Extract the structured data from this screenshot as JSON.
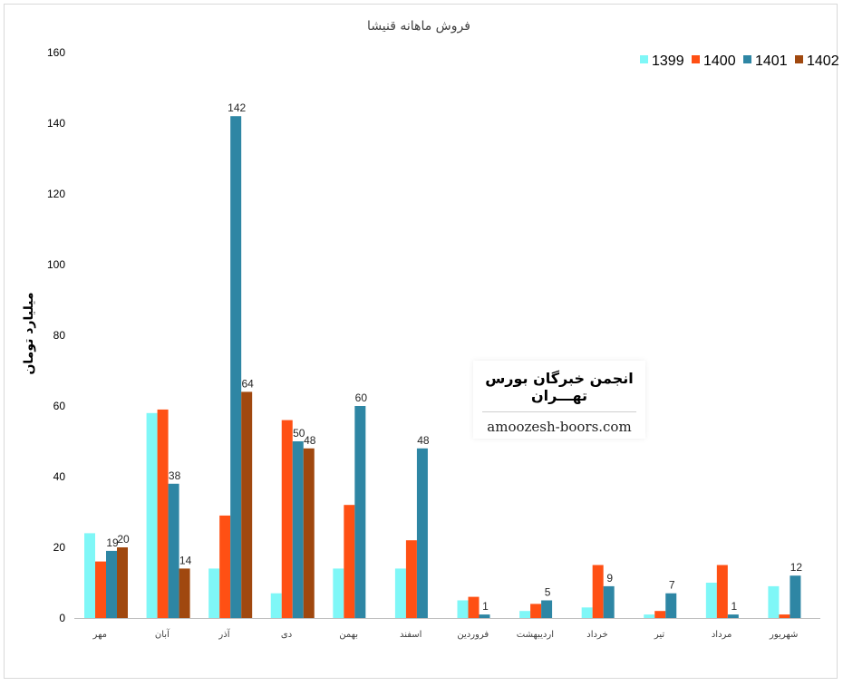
{
  "chart_data": {
    "type": "bar",
    "title": "فروش ماهانه قنیشا",
    "ylabel": "میلیارد تومان",
    "xlabel": "",
    "ylim": [
      0,
      160
    ],
    "yticks": [
      0,
      20,
      40,
      60,
      80,
      100,
      120,
      140,
      160
    ],
    "grid": false,
    "legend_position": "top-right",
    "categories": [
      "مهر",
      "آبان",
      "آذر",
      "دی",
      "بهمن",
      "اسفند",
      "فروردین",
      "اردیبهشت",
      "خرداد",
      "تیر",
      "مرداد",
      "شهریور"
    ],
    "series": [
      {
        "name": "1399",
        "color": "#7ff7f7",
        "values": [
          24,
          58,
          14,
          7,
          14,
          14,
          5,
          2,
          3,
          1,
          10,
          9
        ]
      },
      {
        "name": "1400",
        "color": "#ff5014",
        "values": [
          16,
          59,
          29,
          56,
          32,
          22,
          6,
          4,
          15,
          2,
          15,
          1
        ]
      },
      {
        "name": "1401",
        "color": "#2e86a4",
        "values": [
          19,
          38,
          142,
          50,
          60,
          48,
          1,
          5,
          9,
          7,
          1,
          12
        ]
      },
      {
        "name": "1402",
        "color": "#a0480f",
        "values": [
          20,
          14,
          64,
          48,
          null,
          null,
          null,
          null,
          null,
          null,
          null,
          null
        ]
      }
    ],
    "data_labels": {
      "1401": [
        19,
        38,
        142,
        50,
        60,
        48,
        1,
        5,
        9,
        7,
        1,
        12
      ],
      "1402": [
        20,
        14,
        64,
        48
      ]
    }
  },
  "watermark": {
    "title": "انجمن خبرگان بورس تهـــران",
    "url": "amoozesh-boors.com"
  }
}
